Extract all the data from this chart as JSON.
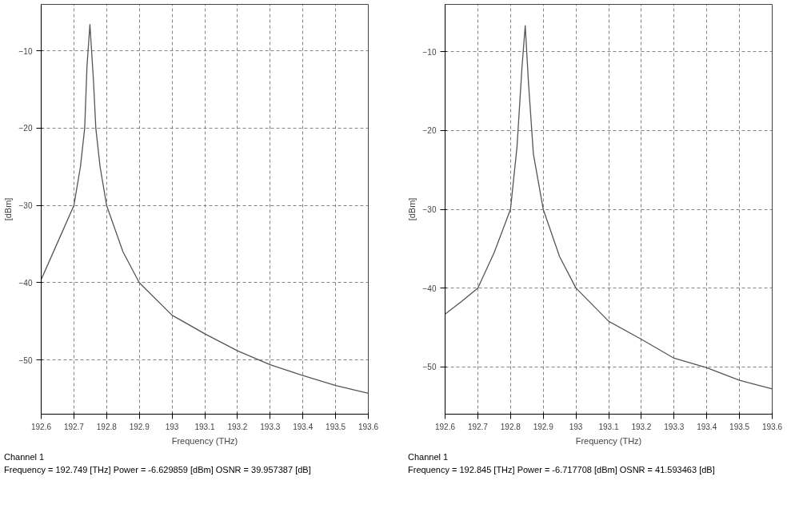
{
  "chart_data": [
    {
      "type": "line",
      "xlabel": "Frequency (THz)",
      "ylabel": "[dBm]",
      "x": [
        192.6,
        192.65,
        192.7,
        192.72,
        192.733,
        192.74,
        192.749,
        192.76,
        192.767,
        192.78,
        192.8,
        192.85,
        192.9,
        193.0,
        193.1,
        193.2,
        193.3,
        193.4,
        193.5,
        193.6
      ],
      "series": [
        {
          "color": "#555555",
          "values": [
            -39.6,
            -34.8,
            -30,
            -25,
            -20,
            -12,
            -6.6,
            -14,
            -20,
            -25,
            -30,
            -36,
            -40,
            -44.2,
            -46.6,
            -48.8,
            -50.6,
            -52.0,
            -53.3,
            -54.3
          ]
        }
      ],
      "xlim": [
        192.6,
        193.6
      ],
      "xticks": [
        192.6,
        192.7,
        192.8,
        192.9,
        193,
        193.1,
        193.2,
        193.3,
        193.4,
        193.5,
        193.6
      ],
      "ylim": [
        -57,
        -4
      ],
      "yticks": [
        -10,
        -20,
        -30,
        -40,
        -50
      ],
      "grid": true,
      "line_style": "solid",
      "marker": "none",
      "annotations": [
        "Channel 1",
        "Frequency = 192.749 [THz] Power = -6.629859 [dBm] OSNR = 39.957387 [dB]"
      ]
    },
    {
      "type": "line",
      "xlabel": "Frequency (THz)",
      "ylabel": "[dBm]",
      "x": [
        192.6,
        192.65,
        192.7,
        192.75,
        192.8,
        192.82,
        192.835,
        192.845,
        192.855,
        192.87,
        192.9,
        192.95,
        193.0,
        193.1,
        193.2,
        193.3,
        193.4,
        193.5,
        193.6
      ],
      "series": [
        {
          "color": "#555555",
          "values": [
            -43.3,
            -41.7,
            -40,
            -35.5,
            -30,
            -22,
            -12,
            -6.7,
            -14,
            -23,
            -30,
            -36,
            -40,
            -44.2,
            -46.5,
            -48.9,
            -50.1,
            -51.7,
            -52.8
          ]
        }
      ],
      "xlim": [
        192.6,
        193.6
      ],
      "xticks": [
        192.6,
        192.7,
        192.8,
        192.9,
        193,
        193.1,
        193.2,
        193.3,
        193.4,
        193.5,
        193.6
      ],
      "ylim": [
        -56,
        -4
      ],
      "yticks": [
        -10,
        -20,
        -30,
        -40,
        -50
      ],
      "grid": true,
      "line_style": "solid",
      "marker": "none",
      "annotations": [
        "Channel 1",
        "Frequency = 192.845 [THz] Power = -6.717708 [dBm] OSNR = 41.593463 [dB]"
      ]
    }
  ]
}
